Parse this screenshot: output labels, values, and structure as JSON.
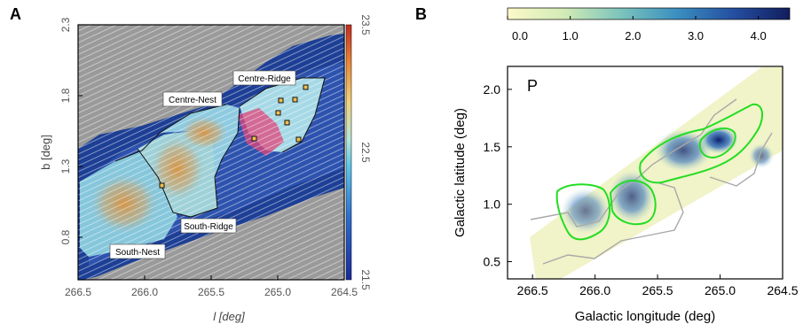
{
  "panels": [
    {
      "letter": "A"
    },
    {
      "letter": "B"
    }
  ],
  "colors": {
    "gray_background": "#9a9a9a",
    "map_dark_blue": "#1d3f95",
    "map_mid_blue": "#3a64c4",
    "cloud_orange": "#d69a4a",
    "pink_region": "#e0447a",
    "contour_green": "#22dd22",
    "contour_gray": "#a9a9a9"
  },
  "chart_data": [
    {
      "type": "heatmap",
      "panel": "A",
      "xlabel": "l [deg]",
      "ylabel": "b [deg]",
      "xlim": [
        266.5,
        264.5
      ],
      "ylim": [
        0.5,
        2.3
      ],
      "xticks": [
        "266.5",
        "266.0",
        "265.5",
        "265.0",
        "264.5"
      ],
      "yticks": [
        "0.8",
        "1.3",
        "1.8",
        "2.3"
      ],
      "colorbar": {
        "orientation": "vertical",
        "range": [
          21.5,
          23.5
        ],
        "ticks": [
          "21.5",
          "22.5",
          "23.5"
        ],
        "colormap": "blue-cyan-yellow-red"
      },
      "grid": false,
      "region_labels": [
        "Centre-Ridge",
        "Centre-Nest",
        "South-Ridge",
        "South-Nest"
      ],
      "annotations": "magnetic field streamlines overlaid on column density map; small square markers indicate dense cores"
    },
    {
      "type": "heatmap",
      "panel": "B",
      "xlabel": "Galactic longitude (deg)",
      "ylabel": "Galactic latitude (deg)",
      "xlim": [
        266.7,
        264.5
      ],
      "ylim": [
        0.35,
        2.2
      ],
      "xticks": [
        "266.5",
        "266.0",
        "265.5",
        "265.0",
        "264.5"
      ],
      "yticks": [
        "0.5",
        "1.0",
        "1.5",
        "2.0"
      ],
      "inset_label": "P",
      "colorbar": {
        "orientation": "horizontal",
        "range": [
          0.0,
          4.5
        ],
        "ticks": [
          "0.0",
          "1.0",
          "2.0",
          "3.0",
          "4.0"
        ],
        "colormap": "yellow-green-blue"
      },
      "grid": false,
      "contours": [
        "green",
        "gray"
      ]
    }
  ]
}
